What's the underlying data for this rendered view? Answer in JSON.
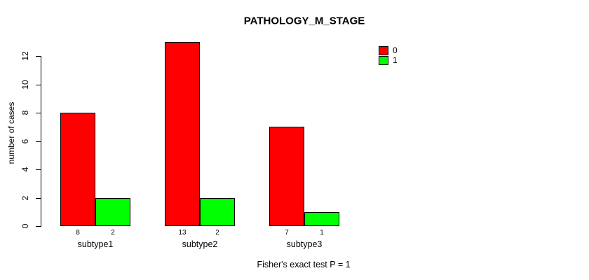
{
  "chart_data": {
    "type": "bar",
    "title": "PATHOLOGY_M_STAGE",
    "xlabel": "",
    "ylabel": "number of cases",
    "categories": [
      "subtype1",
      "subtype2",
      "subtype3"
    ],
    "series": [
      {
        "name": "0",
        "color": "#FF0000",
        "values": [
          8,
          13,
          7
        ]
      },
      {
        "name": "1",
        "color": "#00FF00",
        "values": [
          2,
          2,
          1
        ]
      }
    ],
    "bar_value_labels": [
      [
        8,
        2
      ],
      [
        13,
        2
      ],
      [
        7,
        1
      ]
    ],
    "yticks": [
      0,
      2,
      4,
      6,
      8,
      10,
      12
    ],
    "ylim": [
      0,
      13
    ],
    "grid": false,
    "legend_position": "top-right",
    "legend_entries": [
      "0",
      "1"
    ],
    "annotation": "Fisher's exact test P = 1"
  },
  "colors": {
    "series_0": "#FF0000",
    "series_1": "#00FF00",
    "axis": "#000000",
    "background": "#FFFFFF"
  }
}
